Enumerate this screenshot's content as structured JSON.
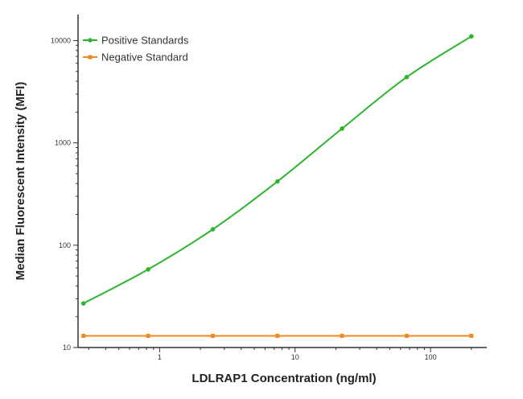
{
  "chart_data": {
    "type": "line",
    "title": "",
    "xlabel": "LDLRAP1 Concentration (ng/ml)",
    "ylabel": "Median  Fluorescent Intensity  (MFI)",
    "xscale": "log",
    "yscale": "log",
    "xlim": [
      0.25,
      260
    ],
    "ylim": [
      10,
      18000
    ],
    "x_ticks": [
      1,
      10,
      100
    ],
    "x_tick_labels": [
      "1",
      "10",
      "100"
    ],
    "y_ticks": [
      10,
      100,
      1000,
      10000
    ],
    "y_tick_labels": [
      "10",
      "100",
      "1000",
      "10000"
    ],
    "grid": false,
    "legend_position": "top-left",
    "series": [
      {
        "name": "Positive Standards",
        "color": "#2db52d",
        "marker": "circle",
        "x": [
          0.274,
          0.823,
          2.47,
          7.41,
          22.2,
          66.7,
          200
        ],
        "y": [
          27,
          58,
          143,
          420,
          1380,
          4400,
          11000
        ]
      },
      {
        "name": "Negative Standard",
        "color": "#f08a24",
        "marker": "square",
        "x": [
          0.274,
          0.823,
          2.47,
          7.41,
          22.2,
          66.7,
          200
        ],
        "y": [
          13,
          13,
          13,
          13,
          13,
          13,
          13
        ]
      }
    ]
  }
}
